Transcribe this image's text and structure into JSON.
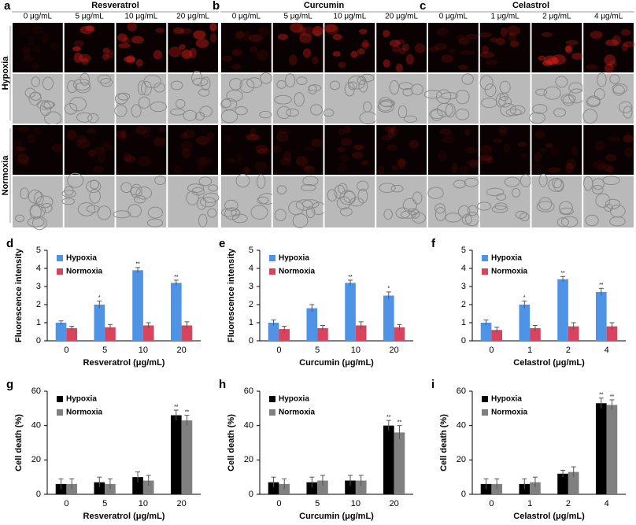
{
  "row_labels": [
    "Hypoxia",
    "Normoxia"
  ],
  "image_panels": [
    {
      "label": "a",
      "title": "Resveratrol",
      "columns": [
        "0 μg/mL",
        "5 μg/mL",
        "10 μg/mL",
        "20 μg/mL"
      ]
    },
    {
      "label": "b",
      "title": "Curcumin",
      "columns": [
        "0 μg/mL",
        "5 μg/mL",
        "10 μg/mL",
        "20 μg/mL"
      ]
    },
    {
      "label": "c",
      "title": "Celastrol",
      "columns": [
        "0 μg/mL",
        "1 μg/mL",
        "2 μg/mL",
        "4 μg/mL"
      ]
    }
  ],
  "chart_data": [
    {
      "type": "bar",
      "label": "d",
      "y_label": "Fluorescence intensity",
      "x_label": "Resveratrol (μg/mL)",
      "categories": [
        "0",
        "5",
        "10",
        "20"
      ],
      "ylim": [
        0,
        5
      ],
      "yticks": [
        0,
        1,
        2,
        3,
        4,
        5
      ],
      "series": [
        {
          "name": "Hypoxia",
          "color": "#4f93e6",
          "values": [
            1.0,
            2.0,
            3.9,
            3.2
          ],
          "errors": [
            0.1,
            0.2,
            0.15,
            0.15
          ],
          "significance": [
            null,
            "*",
            "**",
            "**"
          ]
        },
        {
          "name": "Normoxia",
          "color": "#d8435e",
          "values": [
            0.7,
            0.75,
            0.85,
            0.85
          ],
          "errors": [
            0.1,
            0.15,
            0.15,
            0.2
          ],
          "significance": [
            null,
            null,
            null,
            null
          ]
        }
      ]
    },
    {
      "type": "bar",
      "label": "e",
      "y_label": "Fluorescence intensity",
      "x_label": "Curcumin (μg/mL)",
      "categories": [
        "0",
        "5",
        "10",
        "20"
      ],
      "ylim": [
        0,
        5
      ],
      "yticks": [
        0,
        1,
        2,
        3,
        4,
        5
      ],
      "series": [
        {
          "name": "Hypoxia",
          "color": "#4f93e6",
          "values": [
            1.0,
            1.8,
            3.2,
            2.5
          ],
          "errors": [
            0.15,
            0.2,
            0.15,
            0.2
          ],
          "significance": [
            null,
            null,
            "**",
            "*"
          ]
        },
        {
          "name": "Normoxia",
          "color": "#d8435e",
          "values": [
            0.65,
            0.7,
            0.85,
            0.75
          ],
          "errors": [
            0.15,
            0.15,
            0.2,
            0.15
          ],
          "significance": [
            null,
            null,
            null,
            null
          ]
        }
      ]
    },
    {
      "type": "bar",
      "label": "f",
      "x_label": "Celastrol (μg/mL)",
      "categories": [
        "0",
        "1",
        "2",
        "4"
      ],
      "ylim": [
        0,
        5
      ],
      "yticks": [
        0,
        1,
        2,
        3,
        4,
        5
      ],
      "series": [
        {
          "name": "Hypoxia",
          "color": "#4f93e6",
          "values": [
            1.0,
            2.0,
            3.4,
            2.7
          ],
          "errors": [
            0.15,
            0.2,
            0.15,
            0.2
          ],
          "significance": [
            null,
            "*",
            "**",
            "**"
          ]
        },
        {
          "name": "Normoxia",
          "color": "#d8435e",
          "values": [
            0.6,
            0.7,
            0.8,
            0.8
          ],
          "errors": [
            0.15,
            0.15,
            0.2,
            0.2
          ],
          "significance": [
            null,
            null,
            null,
            null
          ]
        }
      ]
    },
    {
      "type": "bar",
      "label": "g",
      "y_label": "Cell death (%)",
      "x_label": "Resveratrol (μg/mL)",
      "categories": [
        "0",
        "5",
        "10",
        "20"
      ],
      "ylim": [
        0,
        60
      ],
      "yticks": [
        0,
        20,
        40,
        60
      ],
      "series": [
        {
          "name": "Hypoxia",
          "color": "#000000",
          "values": [
            6,
            7,
            10,
            46
          ],
          "errors": [
            3,
            3,
            3,
            3
          ],
          "significance": [
            null,
            null,
            null,
            "**"
          ]
        },
        {
          "name": "Normoxia",
          "color": "#808080",
          "values": [
            6,
            6,
            8,
            43
          ],
          "errors": [
            3,
            3,
            3,
            3
          ],
          "significance": [
            null,
            null,
            null,
            "**"
          ]
        }
      ]
    },
    {
      "type": "bar",
      "label": "h",
      "y_label": "Cell death (%)",
      "x_label": "Curcumin (μg/mL)",
      "categories": [
        "0",
        "5",
        "10",
        "20"
      ],
      "ylim": [
        0,
        60
      ],
      "yticks": [
        0,
        20,
        40,
        60
      ],
      "series": [
        {
          "name": "Hypoxia",
          "color": "#000000",
          "values": [
            7,
            7,
            8,
            40
          ],
          "errors": [
            3,
            3,
            3,
            3
          ],
          "significance": [
            null,
            null,
            null,
            "**"
          ]
        },
        {
          "name": "Normoxia",
          "color": "#808080",
          "values": [
            6,
            8,
            8,
            36
          ],
          "errors": [
            3,
            3,
            3,
            4
          ],
          "significance": [
            null,
            null,
            null,
            "**"
          ]
        }
      ]
    },
    {
      "type": "bar",
      "label": "i",
      "y_label": "Cell death (%)",
      "x_label": "Celastrol (μg/mL)",
      "categories": [
        "0",
        "1",
        "2",
        "4"
      ],
      "ylim": [
        0,
        60
      ],
      "yticks": [
        0,
        20,
        40,
        60
      ],
      "series": [
        {
          "name": "Hypoxia",
          "color": "#000000",
          "values": [
            6,
            6,
            12,
            53
          ],
          "errors": [
            3,
            3,
            2,
            3
          ],
          "significance": [
            null,
            null,
            null,
            "**"
          ]
        },
        {
          "name": "Normoxia",
          "color": "#808080",
          "values": [
            6,
            7,
            13,
            52
          ],
          "errors": [
            3,
            3,
            3,
            3
          ],
          "significance": [
            null,
            null,
            null,
            "**"
          ]
        }
      ]
    }
  ]
}
